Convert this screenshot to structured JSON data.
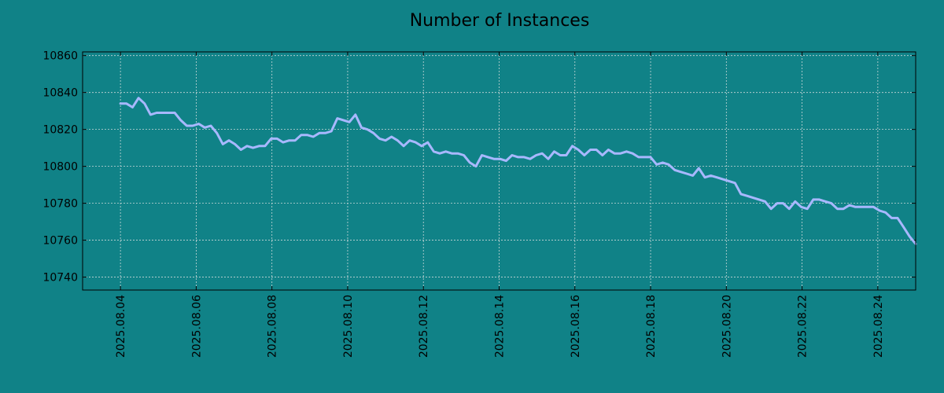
{
  "chart_data": {
    "type": "line",
    "title": "Number of Instances",
    "xlabel": "",
    "ylabel": "",
    "grid": true,
    "background_color": "#108287",
    "line_color": "#a8b8ff",
    "x_start": "2025.08.04",
    "x_end": "2025.08.25",
    "xlim": [
      "2025.08.03",
      "2025.08.25"
    ],
    "ylim": [
      10733,
      10862
    ],
    "y_ticks": [
      10740,
      10760,
      10780,
      10800,
      10820,
      10840,
      10860
    ],
    "x_ticks": [
      "2025.08.04",
      "2025.08.06",
      "2025.08.08",
      "2025.08.10",
      "2025.08.12",
      "2025.08.14",
      "2025.08.16",
      "2025.08.18",
      "2025.08.20",
      "2025.08.22",
      "2025.08.24"
    ],
    "series": [
      {
        "values": [
          10834,
          10834,
          10832,
          10837,
          10834,
          10828,
          10829,
          10829,
          10829,
          10829,
          10825,
          10822,
          10822,
          10823,
          10821,
          10822,
          10818,
          10812,
          10814,
          10812,
          10809,
          10811,
          10810,
          10811,
          10811,
          10815,
          10815,
          10813,
          10814,
          10814,
          10817,
          10817,
          10816,
          10818,
          10818,
          10819,
          10826,
          10825,
          10824,
          10828,
          10821,
          10820,
          10818,
          10815,
          10814,
          10816,
          10814,
          10811,
          10814,
          10813,
          10811,
          10813,
          10808,
          10807,
          10808,
          10807,
          10807,
          10806,
          10802,
          10800,
          10806,
          10805,
          10804,
          10804,
          10803,
          10806,
          10805,
          10805,
          10804,
          10806,
          10807,
          10804,
          10808,
          10806,
          10806,
          10811,
          10809,
          10806,
          10809,
          10809,
          10806,
          10809,
          10807,
          10807,
          10808,
          10807,
          10805,
          10805,
          10805,
          10801,
          10802,
          10801,
          10798,
          10797,
          10796,
          10795,
          10799,
          10794,
          10795,
          10794,
          10793,
          10792,
          10791,
          10785,
          10784,
          10783,
          10782,
          10781,
          10777,
          10780,
          10780,
          10777,
          10781,
          10778,
          10777,
          10782,
          10782,
          10781,
          10780,
          10777,
          10777,
          10779,
          10778,
          10778,
          10778,
          10778,
          10776,
          10775,
          10772,
          10772,
          10767,
          10762,
          10758
        ]
      }
    ]
  }
}
